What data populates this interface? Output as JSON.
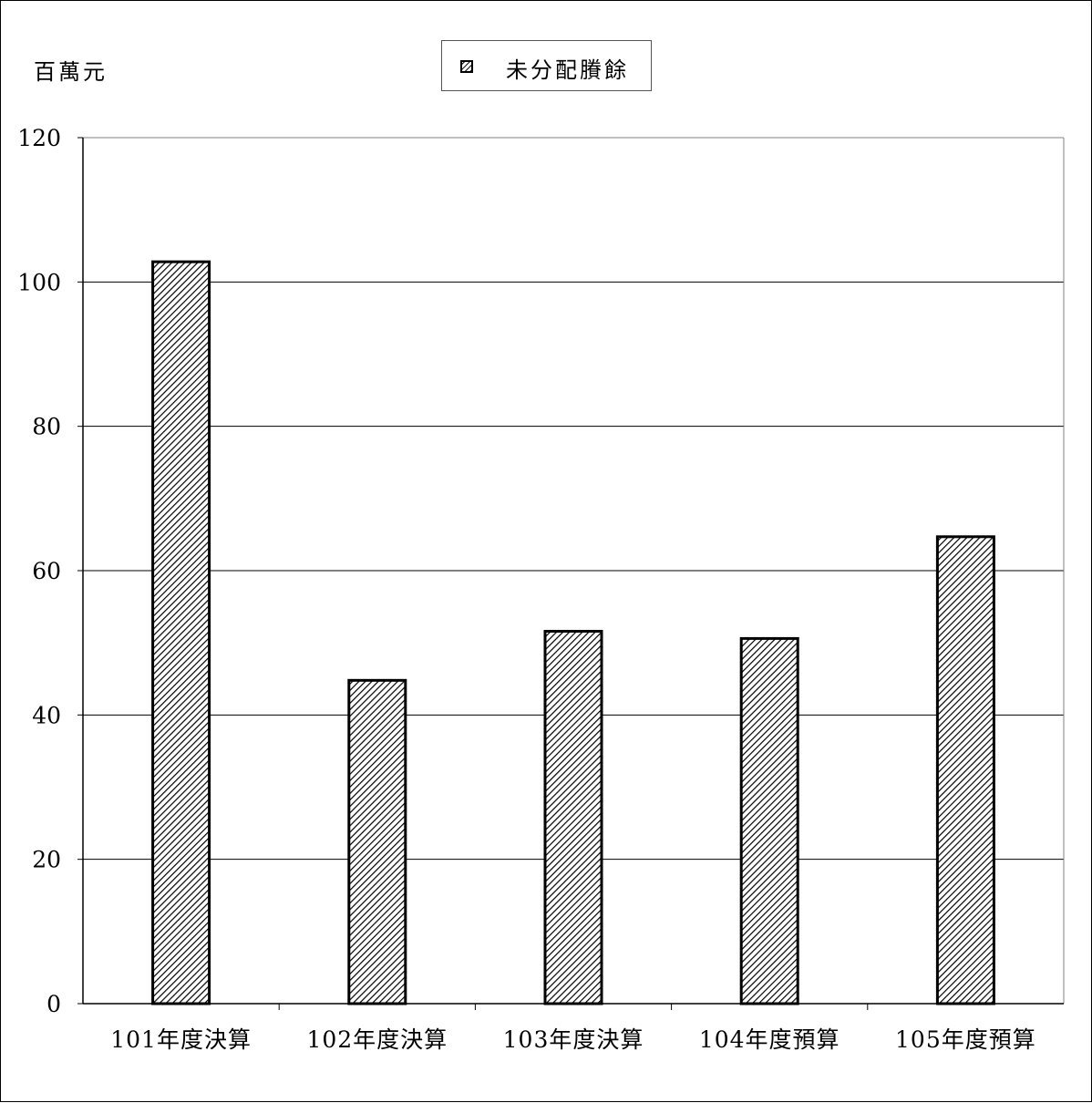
{
  "chart_data": {
    "type": "bar",
    "title": "",
    "unit_label": "百萬元",
    "xlabel": "",
    "ylabel": "",
    "categories": [
      "101年度決算",
      "102年度決算",
      "103年度決算",
      "104年度預算",
      "105年度預算"
    ],
    "series": [
      {
        "name": "未分配賸餘",
        "values": [
          102.8,
          44.8,
          51.6,
          50.6,
          64.7
        ],
        "pattern": "diagonal-hatch",
        "color": "#000000"
      }
    ],
    "ylim": [
      0,
      120
    ],
    "yticks": [
      0,
      20,
      40,
      60,
      80,
      100,
      120
    ],
    "grid": true,
    "legend_position": "top-center"
  }
}
